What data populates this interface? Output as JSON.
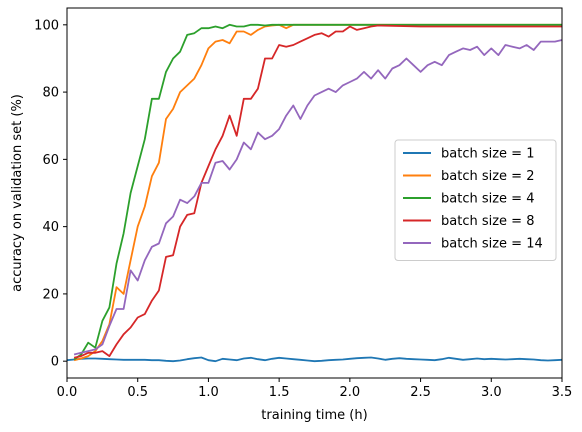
{
  "chart_data": {
    "type": "line",
    "title": "",
    "xlabel": "training time (h)",
    "ylabel": "accuracy on validation set (%)",
    "xlim": [
      0,
      3.5
    ],
    "ylim": [
      -5,
      105
    ],
    "xticks": [
      "0.0",
      "0.5",
      "1.0",
      "1.5",
      "2.0",
      "2.5",
      "3.0",
      "3.5"
    ],
    "yticks": [
      "0",
      "20",
      "40",
      "60",
      "80",
      "100"
    ],
    "grid": false,
    "legend_position": "center-right",
    "series": [
      {
        "name": "batch size = 1",
        "color": "#1f77b4",
        "x": [
          0.0,
          0.05,
          0.1,
          0.15,
          0.2,
          0.25,
          0.3,
          0.35,
          0.4,
          0.45,
          0.5,
          0.55,
          0.6,
          0.65,
          0.7,
          0.75,
          0.8,
          0.85,
          0.9,
          0.95,
          1.0,
          1.05,
          1.1,
          1.15,
          1.2,
          1.25,
          1.3,
          1.35,
          1.4,
          1.45,
          1.5,
          1.55,
          1.6,
          1.65,
          1.7,
          1.75,
          1.8,
          1.85,
          1.9,
          1.95,
          2.0,
          2.05,
          2.1,
          2.15,
          2.2,
          2.25,
          2.3,
          2.35,
          2.4,
          2.45,
          2.5,
          2.55,
          2.6,
          2.65,
          2.7,
          2.75,
          2.8,
          2.85,
          2.9,
          2.95,
          3.0,
          3.05,
          3.1,
          3.15,
          3.2,
          3.25,
          3.3,
          3.35,
          3.4,
          3.45,
          3.5
        ],
        "y": [
          0.3,
          0.5,
          0.7,
          0.8,
          0.8,
          0.7,
          0.6,
          0.5,
          0.4,
          0.4,
          0.4,
          0.4,
          0.3,
          0.3,
          0.1,
          0.0,
          0.2,
          0.6,
          0.9,
          1.1,
          0.3,
          0.0,
          0.7,
          0.5,
          0.3,
          0.8,
          1.0,
          0.6,
          0.3,
          0.7,
          1.0,
          0.8,
          0.6,
          0.4,
          0.2,
          0.0,
          0.1,
          0.3,
          0.4,
          0.5,
          0.7,
          0.9,
          1.0,
          1.1,
          0.8,
          0.4,
          0.7,
          0.9,
          0.7,
          0.6,
          0.5,
          0.4,
          0.3,
          0.6,
          1.0,
          0.7,
          0.4,
          0.6,
          0.8,
          0.6,
          0.7,
          0.6,
          0.5,
          0.6,
          0.7,
          0.6,
          0.5,
          0.3,
          0.2,
          0.3,
          0.4
        ]
      },
      {
        "name": "batch size = 2",
        "color": "#ff7f0e",
        "x": [
          0.05,
          0.1,
          0.15,
          0.2,
          0.25,
          0.3,
          0.35,
          0.4,
          0.45,
          0.5,
          0.55,
          0.6,
          0.65,
          0.7,
          0.75,
          0.8,
          0.85,
          0.9,
          0.95,
          1.0,
          1.05,
          1.1,
          1.15,
          1.2,
          1.25,
          1.3,
          1.35,
          1.4,
          1.45,
          1.5,
          1.55,
          1.6,
          1.65,
          1.7,
          1.75,
          2.0,
          2.5,
          3.0,
          3.5
        ],
        "y": [
          0.3,
          0.8,
          1.5,
          3.0,
          6.0,
          11.0,
          22.0,
          20.0,
          30.0,
          40.0,
          46.0,
          55.0,
          59.0,
          72.0,
          75.0,
          80.0,
          82.0,
          84.0,
          88.0,
          93.0,
          95.0,
          95.5,
          94.5,
          98.0,
          98.0,
          97.0,
          98.5,
          99.5,
          99.8,
          100.0,
          99.0,
          100.0,
          100.0,
          100.0,
          100.0,
          100.0,
          100.0,
          100.0,
          100.0
        ]
      },
      {
        "name": "batch size = 4",
        "color": "#2ca02c",
        "x": [
          0.05,
          0.1,
          0.15,
          0.2,
          0.25,
          0.3,
          0.35,
          0.4,
          0.45,
          0.5,
          0.55,
          0.6,
          0.65,
          0.7,
          0.75,
          0.8,
          0.85,
          0.9,
          0.95,
          1.0,
          1.05,
          1.1,
          1.15,
          1.2,
          1.25,
          1.3,
          1.35,
          1.4,
          1.45,
          1.5,
          2.0,
          2.5,
          3.0,
          3.5
        ],
        "y": [
          0.5,
          2.0,
          5.5,
          4.0,
          12.0,
          16.0,
          29.0,
          38.0,
          50.0,
          58.0,
          66.0,
          78.0,
          78.0,
          86.0,
          90.0,
          92.0,
          97.0,
          97.5,
          99.0,
          99.0,
          99.5,
          99.0,
          100.0,
          99.5,
          99.5,
          100.0,
          100.0,
          99.8,
          100.0,
          100.0,
          100.0,
          100.0,
          100.0,
          100.0
        ]
      },
      {
        "name": "batch size = 8",
        "color": "#d62728",
        "x": [
          0.05,
          0.1,
          0.15,
          0.2,
          0.25,
          0.3,
          0.35,
          0.4,
          0.45,
          0.5,
          0.55,
          0.6,
          0.65,
          0.7,
          0.75,
          0.8,
          0.85,
          0.9,
          0.95,
          1.0,
          1.05,
          1.1,
          1.15,
          1.2,
          1.25,
          1.3,
          1.35,
          1.4,
          1.45,
          1.5,
          1.55,
          1.6,
          1.65,
          1.7,
          1.75,
          1.8,
          1.85,
          1.9,
          1.95,
          2.0,
          2.05,
          2.1,
          2.15,
          2.2,
          2.5,
          3.0,
          3.5
        ],
        "y": [
          1.0,
          1.5,
          2.5,
          2.5,
          3.0,
          1.5,
          5.0,
          8.0,
          10.0,
          13.0,
          14.0,
          18.0,
          21.0,
          31.0,
          31.5,
          40.0,
          43.5,
          44.0,
          53.0,
          58.0,
          63.0,
          67.0,
          73.0,
          67.0,
          78.0,
          78.0,
          81.0,
          90.0,
          90.0,
          94.0,
          93.5,
          94.0,
          95.0,
          96.0,
          97.0,
          97.5,
          96.5,
          98.0,
          98.0,
          99.5,
          98.5,
          99.0,
          99.5,
          99.8,
          99.5,
          99.5,
          99.5
        ]
      },
      {
        "name": "batch size = 14",
        "color": "#9467bd",
        "x": [
          0.05,
          0.1,
          0.15,
          0.2,
          0.25,
          0.3,
          0.35,
          0.4,
          0.45,
          0.5,
          0.55,
          0.6,
          0.65,
          0.7,
          0.75,
          0.8,
          0.85,
          0.9,
          0.95,
          1.0,
          1.05,
          1.1,
          1.15,
          1.2,
          1.25,
          1.3,
          1.35,
          1.4,
          1.45,
          1.5,
          1.55,
          1.6,
          1.65,
          1.7,
          1.75,
          1.8,
          1.85,
          1.9,
          1.95,
          2.0,
          2.05,
          2.1,
          2.15,
          2.2,
          2.25,
          2.3,
          2.35,
          2.4,
          2.45,
          2.5,
          2.55,
          2.6,
          2.65,
          2.7,
          2.75,
          2.8,
          2.85,
          2.9,
          2.95,
          3.0,
          3.05,
          3.1,
          3.15,
          3.2,
          3.25,
          3.3,
          3.35,
          3.4,
          3.45,
          3.5
        ],
        "y": [
          2.0,
          2.5,
          3.0,
          3.5,
          5.0,
          10.5,
          15.5,
          15.5,
          27.0,
          24.0,
          30.0,
          34.0,
          35.0,
          41.0,
          43.0,
          48.0,
          47.0,
          49.0,
          53.0,
          53.0,
          59.0,
          59.5,
          57.0,
          60.0,
          65.0,
          63.0,
          68.0,
          66.0,
          67.0,
          69.0,
          73.0,
          76.0,
          72.0,
          76.0,
          79.0,
          80.0,
          81.0,
          80.0,
          82.0,
          83.0,
          84.0,
          86.0,
          84.0,
          86.5,
          84.0,
          87.0,
          88.0,
          90.0,
          88.0,
          86.0,
          88.0,
          89.0,
          88.0,
          91.0,
          92.0,
          93.0,
          92.5,
          93.5,
          91.0,
          93.0,
          91.0,
          94.0,
          93.5,
          93.0,
          94.0,
          92.5,
          95.0,
          95.0,
          95.0,
          95.5
        ]
      }
    ]
  }
}
